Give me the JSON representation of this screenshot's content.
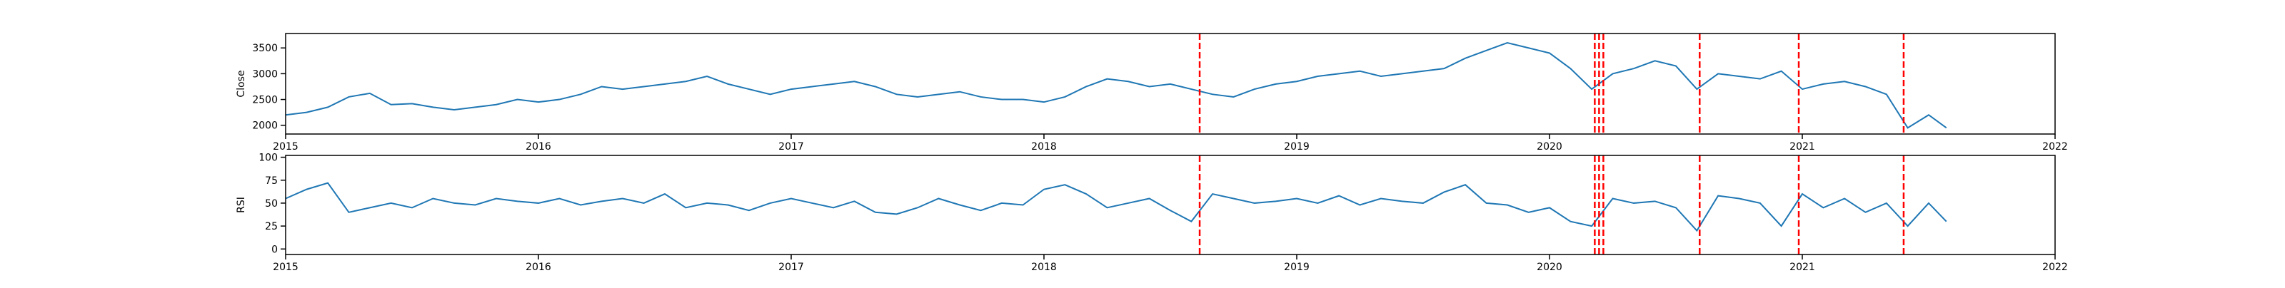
{
  "chart_data": [
    {
      "type": "line",
      "ylabel": "Close",
      "color": "#1f77b4",
      "x": [
        2015.0,
        2015.083,
        2015.167,
        2015.25,
        2015.333,
        2015.417,
        2015.5,
        2015.583,
        2015.667,
        2015.75,
        2015.833,
        2015.917,
        2016.0,
        2016.083,
        2016.167,
        2016.25,
        2016.333,
        2016.417,
        2016.5,
        2016.583,
        2016.667,
        2016.75,
        2016.833,
        2016.917,
        2017.0,
        2017.083,
        2017.167,
        2017.25,
        2017.333,
        2017.417,
        2017.5,
        2017.583,
        2017.667,
        2017.75,
        2017.833,
        2017.917,
        2018.0,
        2018.083,
        2018.167,
        2018.25,
        2018.333,
        2018.417,
        2018.5,
        2018.583,
        2018.667,
        2018.75,
        2018.833,
        2018.917,
        2019.0,
        2019.083,
        2019.167,
        2019.25,
        2019.333,
        2019.417,
        2019.5,
        2019.583,
        2019.667,
        2019.75,
        2019.833,
        2019.917,
        2020.0,
        2020.083,
        2020.167,
        2020.25,
        2020.333,
        2020.417,
        2020.5,
        2020.583,
        2020.667,
        2020.75,
        2020.833,
        2020.917,
        2021.0,
        2021.083,
        2021.167,
        2021.25,
        2021.333,
        2021.417,
        2021.5,
        2021.57
      ],
      "values": [
        2200,
        2250,
        2350,
        2550,
        2620,
        2400,
        2420,
        2350,
        2300,
        2350,
        2400,
        2500,
        2450,
        2500,
        2600,
        2750,
        2700,
        2750,
        2800,
        2850,
        2950,
        2800,
        2700,
        2600,
        2700,
        2750,
        2800,
        2850,
        2750,
        2600,
        2550,
        2600,
        2650,
        2550,
        2500,
        2500,
        2450,
        2550,
        2750,
        2900,
        2850,
        2750,
        2800,
        2700,
        2600,
        2550,
        2700,
        2800,
        2850,
        2950,
        3000,
        3050,
        2950,
        3000,
        3050,
        3100,
        3300,
        3450,
        3600,
        3500,
        3400,
        3100,
        2700,
        3000,
        3100,
        3250,
        3150,
        2700,
        3000,
        2950,
        2900,
        3050,
        2700,
        2800,
        2850,
        2750,
        2600,
        1950,
        2200,
        1950
      ],
      "xlim": [
        2015,
        2022
      ],
      "xticks": [
        2015,
        2016,
        2017,
        2018,
        2019,
        2020,
        2021,
        2022
      ],
      "ylim": [
        1830,
        3780
      ],
      "yticks": [
        2000,
        2500,
        3000,
        3500
      ],
      "vlines": [
        2018.616,
        2020.179,
        2020.196,
        2020.213,
        2020.594,
        2020.986,
        2021.401
      ],
      "vline_color": "#ff0000"
    },
    {
      "type": "line",
      "ylabel": "RSI",
      "color": "#1f77b4",
      "x": [
        2015.0,
        2015.083,
        2015.167,
        2015.25,
        2015.333,
        2015.417,
        2015.5,
        2015.583,
        2015.667,
        2015.75,
        2015.833,
        2015.917,
        2016.0,
        2016.083,
        2016.167,
        2016.25,
        2016.333,
        2016.417,
        2016.5,
        2016.583,
        2016.667,
        2016.75,
        2016.833,
        2016.917,
        2017.0,
        2017.083,
        2017.167,
        2017.25,
        2017.333,
        2017.417,
        2017.5,
        2017.583,
        2017.667,
        2017.75,
        2017.833,
        2017.917,
        2018.0,
        2018.083,
        2018.167,
        2018.25,
        2018.333,
        2018.417,
        2018.5,
        2018.583,
        2018.667,
        2018.75,
        2018.833,
        2018.917,
        2019.0,
        2019.083,
        2019.167,
        2019.25,
        2019.333,
        2019.417,
        2019.5,
        2019.583,
        2019.667,
        2019.75,
        2019.833,
        2019.917,
        2020.0,
        2020.083,
        2020.167,
        2020.25,
        2020.333,
        2020.417,
        2020.5,
        2020.583,
        2020.667,
        2020.75,
        2020.833,
        2020.917,
        2021.0,
        2021.083,
        2021.167,
        2021.25,
        2021.333,
        2021.417,
        2021.5,
        2021.57
      ],
      "values": [
        55,
        65,
        72,
        40,
        45,
        50,
        45,
        55,
        50,
        48,
        55,
        52,
        50,
        55,
        48,
        52,
        55,
        50,
        60,
        45,
        50,
        48,
        42,
        50,
        55,
        50,
        45,
        52,
        40,
        38,
        45,
        55,
        48,
        42,
        50,
        48,
        65,
        70,
        60,
        45,
        50,
        55,
        42,
        30,
        60,
        55,
        50,
        52,
        55,
        50,
        58,
        48,
        55,
        52,
        50,
        62,
        70,
        50,
        48,
        40,
        45,
        30,
        25,
        55,
        50,
        52,
        45,
        20,
        58,
        55,
        50,
        25,
        60,
        45,
        55,
        40,
        50,
        25,
        50,
        30
      ],
      "xlim": [
        2015,
        2022
      ],
      "xticks": [
        2015,
        2016,
        2017,
        2018,
        2019,
        2020,
        2021,
        2022
      ],
      "ylim": [
        -6,
        102
      ],
      "yticks": [
        0,
        25,
        50,
        75,
        100
      ],
      "vlines": [
        2018.616,
        2020.179,
        2020.196,
        2020.213,
        2020.594,
        2020.986,
        2021.401
      ],
      "vline_color": "#ff0000"
    }
  ]
}
